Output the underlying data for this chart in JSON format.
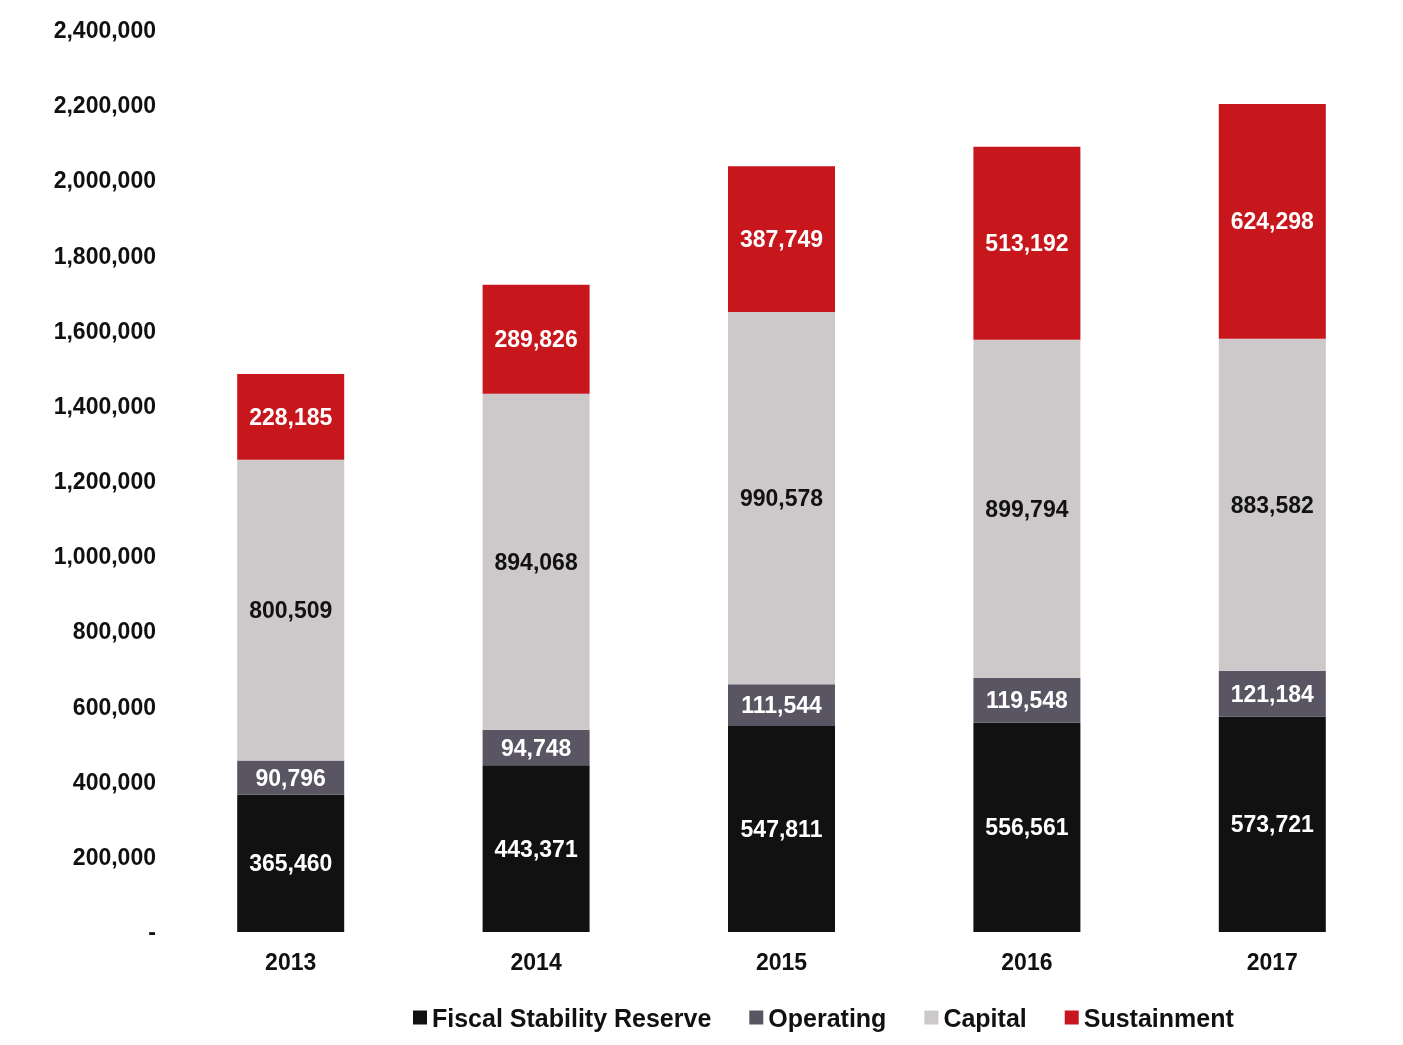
{
  "chart_data": {
    "type": "bar",
    "stacked": true,
    "legend": "bottom",
    "categories": [
      "2013",
      "2014",
      "2015",
      "2016",
      "2017"
    ],
    "ylim": [
      0,
      2400000
    ],
    "yticks": [
      {
        "value": 0,
        "label": "-"
      },
      {
        "value": 200000,
        "label": "200,000"
      },
      {
        "value": 400000,
        "label": "400,000"
      },
      {
        "value": 600000,
        "label": "600,000"
      },
      {
        "value": 800000,
        "label": "800,000"
      },
      {
        "value": 1000000,
        "label": "1,000,000"
      },
      {
        "value": 1200000,
        "label": "1,200,000"
      },
      {
        "value": 1400000,
        "label": "1,400,000"
      },
      {
        "value": 1600000,
        "label": "1,600,000"
      },
      {
        "value": 1800000,
        "label": "1,800,000"
      },
      {
        "value": 2000000,
        "label": "2,000,000"
      },
      {
        "value": 2200000,
        "label": "2,200,000"
      },
      {
        "value": 2400000,
        "label": "2,400,000"
      }
    ],
    "series": [
      {
        "name": "Fiscal Stability Reserve",
        "color": "#111111",
        "values": [
          365460,
          443371,
          547811,
          556561,
          573721
        ],
        "value_labels": [
          "365,460",
          "443,371",
          "547,811",
          "556,561",
          "573,721"
        ]
      },
      {
        "name": "Operating",
        "color": "#5a5562",
        "values": [
          90796,
          94748,
          111544,
          119548,
          121184
        ],
        "value_labels": [
          "90,796",
          "94,748",
          "111,544",
          "119,548",
          "121,184"
        ]
      },
      {
        "name": "Capital",
        "color": "#cdc9cb",
        "values": [
          800509,
          894068,
          990578,
          899794,
          883582
        ],
        "value_labels": [
          "800,509",
          "894,068",
          "990,578",
          "899,794",
          "883,582"
        ]
      },
      {
        "name": "Sustainment",
        "color": "#c8161d",
        "values": [
          228185,
          289826,
          387749,
          513192,
          624298
        ],
        "value_labels": [
          "228,185",
          "289,826",
          "387,749",
          "513,192",
          "624,298"
        ]
      }
    ]
  }
}
